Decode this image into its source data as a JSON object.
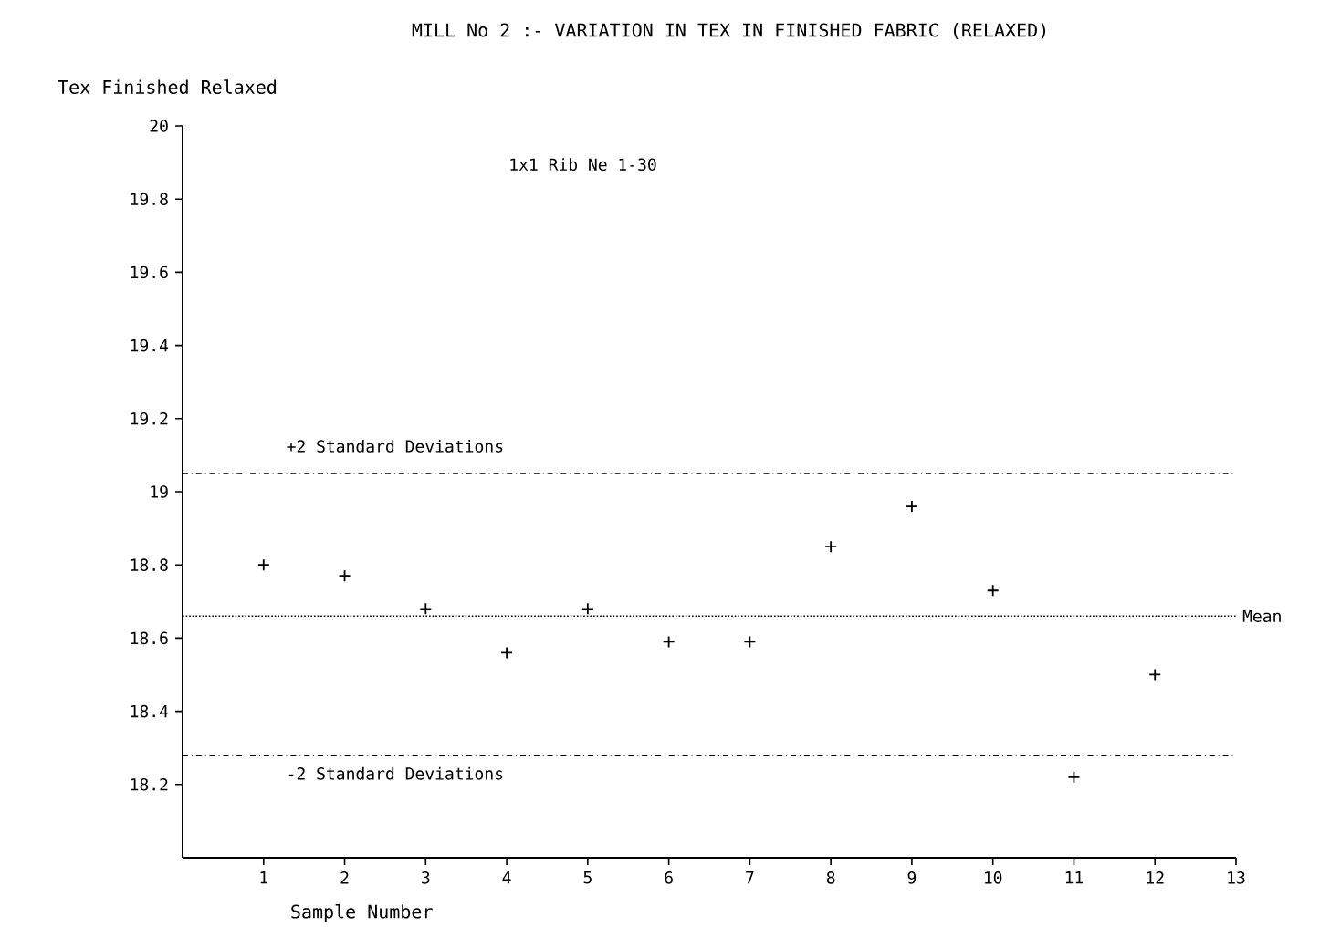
{
  "chart_data": {
    "type": "scatter",
    "title": "MILL No 2 :- VARIATION IN TEX IN FINISHED FABRIC (RELAXED)",
    "xlabel": "Sample Number",
    "ylabel": "Tex Finished Relaxed",
    "annotations": [
      "1x1 Rib Ne 1-30"
    ],
    "x": [
      1,
      2,
      3,
      4,
      5,
      6,
      7,
      8,
      9,
      10,
      11,
      12
    ],
    "series": [
      {
        "color": "#000000",
        "values": [
          18.8,
          18.77,
          18.68,
          18.56,
          18.68,
          18.59,
          18.59,
          18.85,
          18.96,
          18.73,
          18.22,
          18.5
        ]
      }
    ],
    "marker": "cross",
    "xlim": [
      0,
      13
    ],
    "xticks": [
      1,
      2,
      3,
      4,
      5,
      6,
      7,
      8,
      9,
      10,
      11,
      12,
      13
    ],
    "ylim": [
      18,
      20
    ],
    "yticks": [
      18.2,
      18.4,
      18.6,
      18.8,
      19,
      19.2,
      19.4,
      19.6,
      19.8,
      20
    ],
    "ref_lines": [
      {
        "axis": "y",
        "value": 19.05,
        "label": "+2 Standard Deviations",
        "line_style": "dashdot",
        "color": "#000000"
      },
      {
        "axis": "y",
        "value": 18.66,
        "label": "Mean",
        "line_style": "dotted",
        "color": "#000000"
      },
      {
        "axis": "y",
        "value": 18.28,
        "label": "-2 Standard Deviations",
        "line_style": "dashdot",
        "color": "#000000"
      }
    ],
    "grid": false
  }
}
